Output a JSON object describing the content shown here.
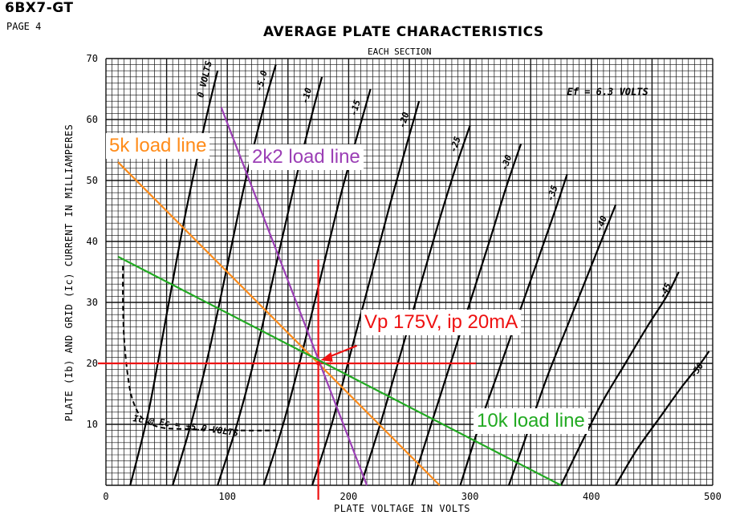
{
  "header": {
    "tube_type": "6BX7-GT",
    "page": "PAGE 4",
    "title": "AVERAGE PLATE CHARACTERISTICS",
    "subtitle": "EACH SECTION"
  },
  "colors": {
    "grid": "#111111",
    "curve": "#000000",
    "load_5k": "#ff8c1a",
    "load_2k2": "#9b3fb5",
    "load_10k": "#22aa22",
    "op_point": "#ee1111"
  },
  "chart_data": {
    "type": "line",
    "title": "AVERAGE PLATE CHARACTERISTICS",
    "subtitle": "EACH SECTION",
    "xlabel": "PLATE VOLTAGE IN VOLTS",
    "ylabel": "PLATE (Ib) AND GRID (Ic) CURRENT IN MILLIAMPERES",
    "xlim": [
      0,
      500
    ],
    "ylim": [
      0,
      70
    ],
    "x_ticks": [
      0,
      100,
      200,
      300,
      400,
      500
    ],
    "y_ticks": [
      10,
      20,
      30,
      40,
      50,
      60,
      70
    ],
    "grid": true,
    "heater_note": "Ef = 6.3 VOLTS",
    "grid_curve_label": "Ic @ Ec = +5.0 VOLTS",
    "plate_curves": [
      {
        "label": "0 VOLTS",
        "points": [
          [
            20,
            0
          ],
          [
            35,
            12
          ],
          [
            50,
            28
          ],
          [
            65,
            44
          ],
          [
            80,
            58
          ],
          [
            92,
            68
          ]
        ]
      },
      {
        "label": "-5.0",
        "points": [
          [
            55,
            0
          ],
          [
            70,
            10
          ],
          [
            85,
            22
          ],
          [
            100,
            36
          ],
          [
            115,
            50
          ],
          [
            130,
            62
          ],
          [
            140,
            69
          ]
        ]
      },
      {
        "label": "-10",
        "points": [
          [
            92,
            0
          ],
          [
            108,
            10
          ],
          [
            124,
            22
          ],
          [
            140,
            36
          ],
          [
            155,
            49
          ],
          [
            170,
            61
          ],
          [
            178,
            67
          ]
        ]
      },
      {
        "label": "-15",
        "points": [
          [
            130,
            0
          ],
          [
            146,
            10
          ],
          [
            162,
            22
          ],
          [
            178,
            35
          ],
          [
            194,
            48
          ],
          [
            208,
            58
          ],
          [
            218,
            65
          ]
        ]
      },
      {
        "label": "-20",
        "points": [
          [
            170,
            0
          ],
          [
            186,
            10
          ],
          [
            202,
            22
          ],
          [
            218,
            34
          ],
          [
            234,
            46
          ],
          [
            248,
            56
          ],
          [
            258,
            63
          ]
        ]
      },
      {
        "label": "-25",
        "points": [
          [
            210,
            0
          ],
          [
            226,
            10
          ],
          [
            242,
            21
          ],
          [
            258,
            32
          ],
          [
            274,
            43
          ],
          [
            288,
            52
          ],
          [
            300,
            59
          ]
        ]
      },
      {
        "label": "-30",
        "points": [
          [
            252,
            0
          ],
          [
            268,
            10
          ],
          [
            284,
            20
          ],
          [
            300,
            30
          ],
          [
            316,
            40
          ],
          [
            330,
            49
          ],
          [
            342,
            56
          ]
        ]
      },
      {
        "label": "-35",
        "points": [
          [
            292,
            0
          ],
          [
            308,
            10
          ],
          [
            324,
            19
          ],
          [
            340,
            28
          ],
          [
            356,
            37
          ],
          [
            370,
            45
          ],
          [
            380,
            51
          ]
        ]
      },
      {
        "label": "-40",
        "points": [
          [
            332,
            0
          ],
          [
            348,
            9
          ],
          [
            364,
            18
          ],
          [
            380,
            26
          ],
          [
            396,
            34
          ],
          [
            410,
            41
          ],
          [
            420,
            46
          ]
        ]
      },
      {
        "label": "-45",
        "points": [
          [
            375,
            0
          ],
          [
            392,
            7
          ],
          [
            410,
            14
          ],
          [
            428,
            20
          ],
          [
            446,
            26
          ],
          [
            462,
            31
          ],
          [
            472,
            35
          ]
        ]
      },
      {
        "label": "-50",
        "points": [
          [
            420,
            0
          ],
          [
            438,
            6
          ],
          [
            456,
            11
          ],
          [
            474,
            16
          ],
          [
            490,
            20
          ],
          [
            497,
            22
          ]
        ]
      }
    ],
    "grid_current_curve": {
      "label": "Ic @ Ec = +5.0 VOLTS",
      "points": [
        [
          14,
          36
        ],
        [
          14,
          30
        ],
        [
          15,
          24
        ],
        [
          18,
          18
        ],
        [
          22,
          14
        ],
        [
          30,
          11
        ],
        [
          45,
          9.5
        ],
        [
          70,
          9.2
        ],
        [
          110,
          9.0
        ],
        [
          140,
          9.0
        ]
      ]
    },
    "load_lines": [
      {
        "name": "5k load line",
        "points": [
          [
            10,
            53
          ],
          [
            275,
            0
          ]
        ]
      },
      {
        "name": "2k2 load line",
        "points": [
          [
            95,
            62
          ],
          [
            215,
            0
          ]
        ]
      },
      {
        "name": "10k load line",
        "points": [
          [
            10,
            37.5
          ],
          [
            375,
            0
          ]
        ]
      }
    ],
    "operating_point": {
      "label": "Vp 175V, ip 20mA",
      "x": 175,
      "y": 20
    },
    "operating_lines": {
      "vertical_x": 175,
      "vertical_y_range": [
        0,
        37
      ],
      "horizontal_y": 20,
      "horizontal_x_range": [
        0,
        305
      ]
    }
  }
}
